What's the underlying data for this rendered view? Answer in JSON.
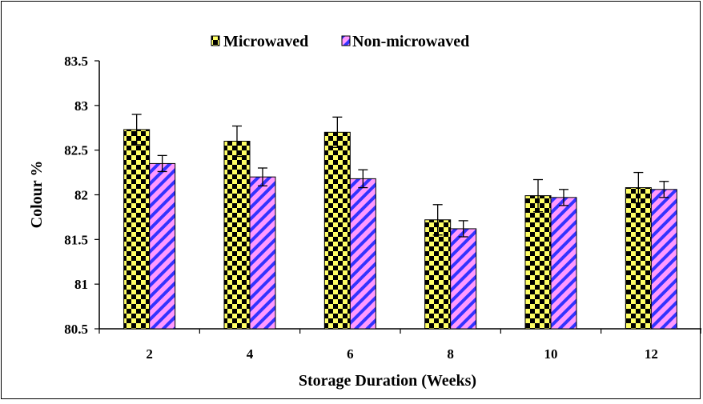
{
  "chart_data": {
    "type": "bar",
    "categories": [
      "2",
      "4",
      "6",
      "8",
      "10",
      "12"
    ],
    "series": [
      {
        "name": "Microwaved",
        "values": [
          82.73,
          82.6,
          82.7,
          81.72,
          81.99,
          82.08
        ],
        "error": [
          0.17,
          0.17,
          0.17,
          0.17,
          0.18,
          0.17
        ],
        "pattern": "checkerboard",
        "colors": [
          "#ffff66",
          "#000000"
        ]
      },
      {
        "name": "Non-microwaved",
        "values": [
          82.35,
          82.2,
          82.18,
          81.62,
          81.97,
          82.06
        ],
        "error": [
          0.09,
          0.1,
          0.1,
          0.09,
          0.09,
          0.09
        ],
        "pattern": "diagonal-stripes",
        "colors": [
          "#ff99ff",
          "#3333ff"
        ]
      }
    ],
    "xlabel": "Storage Duration (Weeks)",
    "ylabel": "Colour  %",
    "ylim": [
      80.5,
      83.5
    ],
    "yticks": [
      "80.5",
      "81",
      "81.5",
      "82",
      "82.5",
      "83",
      "83.5"
    ],
    "grid": false,
    "legend_position": "top"
  }
}
